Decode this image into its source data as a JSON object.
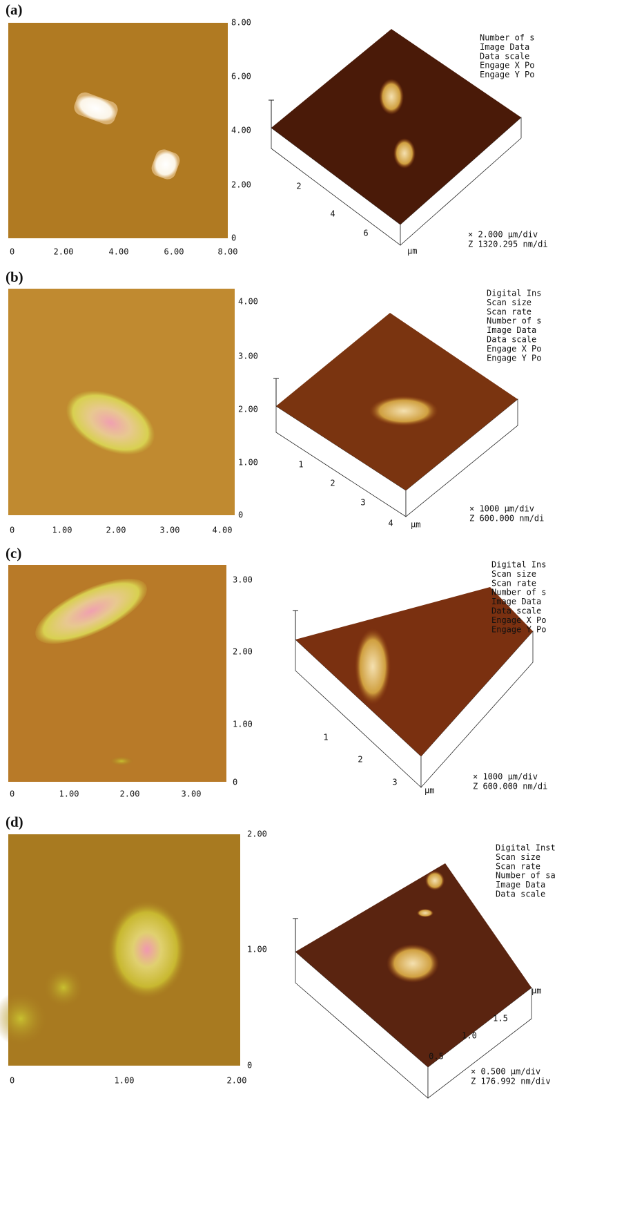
{
  "panels": [
    {
      "label": "(a)",
      "image_x_ticks": [
        "0",
        "2.00",
        "4.00",
        "6.00",
        "8.00"
      ],
      "image_y_ticks": [
        "8.00",
        "6.00",
        "4.00",
        "2.00",
        "0"
      ],
      "info": [
        "Number of s",
        "Image Data",
        "Data scale",
        "Engage X Po",
        "Engage Y Po"
      ],
      "surface_ticks": [
        "2",
        "4",
        "6"
      ],
      "surface_unit": "µm",
      "scale": [
        "×  2.000 µm/div",
        "Z  1320.295 nm/di"
      ]
    },
    {
      "label": "(b)",
      "image_x_ticks": [
        "0",
        "1.00",
        "2.00",
        "3.00",
        "4.00"
      ],
      "image_y_ticks": [
        "4.00",
        "3.00",
        "2.00",
        "1.00",
        "0"
      ],
      "info": [
        "Digital Ins",
        "Scan size",
        "Scan rate",
        "Number of s",
        "Image Data",
        "Data scale",
        "Engage X Po",
        "Engage Y Po"
      ],
      "surface_ticks": [
        "1",
        "2",
        "3",
        "4"
      ],
      "surface_unit": "µm",
      "scale": [
        "×  1000 µm/div",
        "Z  600.000 nm/di"
      ]
    },
    {
      "label": "(c)",
      "image_x_ticks": [
        "0",
        "1.00",
        "2.00",
        "3.00"
      ],
      "image_y_ticks": [
        "3.00",
        "2.00",
        "1.00",
        "0"
      ],
      "info": [
        "Digital Ins",
        "Scan size",
        "Scan rate",
        "Number of s",
        "Image Data",
        "Data scale",
        "Engage X Po",
        "Engage Y Po"
      ],
      "surface_ticks": [
        "1",
        "2",
        "3"
      ],
      "surface_unit": "µm",
      "scale": [
        "×  1000 µm/div",
        "Z  600.000 nm/di"
      ]
    },
    {
      "label": "(d)",
      "image_x_ticks": [
        "0",
        "1.00",
        "2.00"
      ],
      "image_y_ticks": [
        "2.00",
        "1.00",
        "0"
      ],
      "info": [
        "Digital Inst",
        "Scan size",
        "Scan rate",
        "Number of sa",
        "Image Data",
        "Data scale"
      ],
      "surface_ticks": [
        "0.5",
        "1.0",
        "1.5"
      ],
      "surface_unit": "µm",
      "scale": [
        "×  0.500 µm/div",
        "Z  176.992 nm/div"
      ]
    }
  ]
}
